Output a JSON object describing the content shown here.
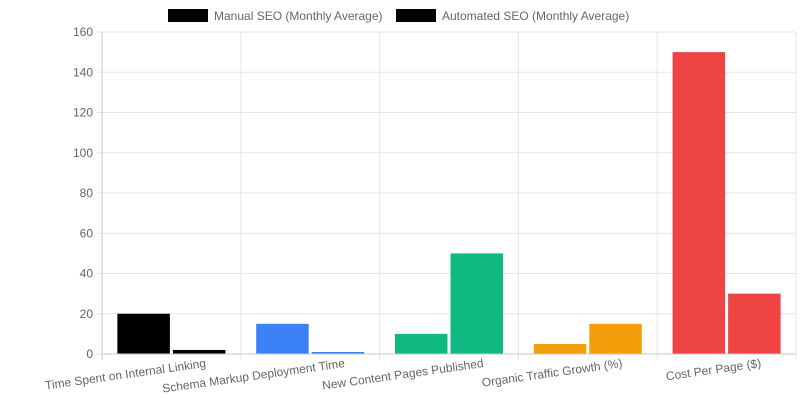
{
  "chart_data": {
    "type": "bar",
    "title": "",
    "xlabel": "",
    "ylabel": "",
    "categories": [
      "Time Spent on Internal Linking",
      "Schema Markup Deployment Time",
      "New Content Pages Published",
      "Organic Traffic Growth (%)",
      "Cost Per Page ($)"
    ],
    "series": [
      {
        "name": "Manual SEO (Monthly Average)",
        "values": [
          20,
          15,
          10,
          5,
          150
        ],
        "legend_color": "#000000"
      },
      {
        "name": "Automated SEO (Monthly Average)",
        "values": [
          2,
          1,
          50,
          15,
          30
        ],
        "legend_color": "#000000"
      }
    ],
    "bar_colors_by_category": [
      "#000000",
      "#3b82f6",
      "#10b981",
      "#f59e0b",
      "#ef4444"
    ],
    "ylim": [
      0,
      160
    ],
    "yticks": [
      0,
      20,
      40,
      60,
      80,
      100,
      120,
      140,
      160
    ],
    "grid": true,
    "legend_position": "top",
    "colors": {
      "grid": "#e5e5e5",
      "axis": "#c8c8c8",
      "tick_text": "#666666"
    }
  }
}
